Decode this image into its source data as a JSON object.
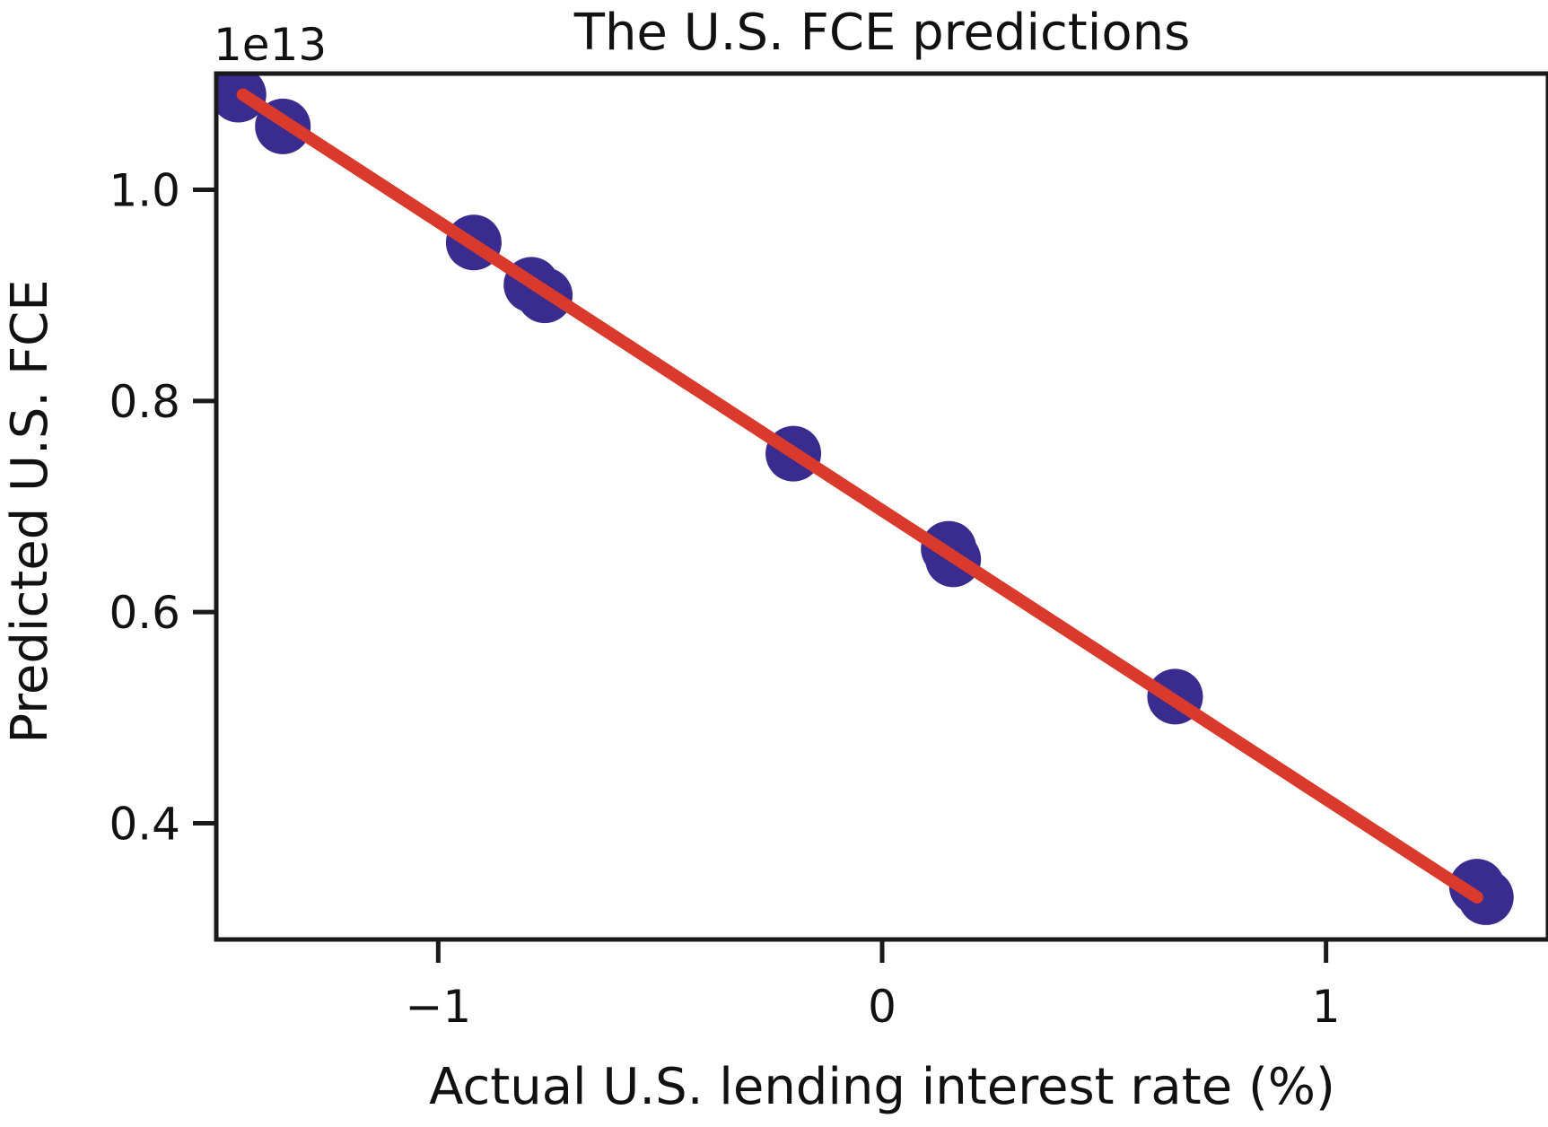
{
  "chart_data": {
    "type": "scatter",
    "title": "The U.S. FCE predictions",
    "xlabel": "Actual U.S. lending interest rate (%)",
    "ylabel": "Predicted U.S. FCE",
    "y_offset_label": "1e13",
    "xlim": [
      -1.5,
      1.5
    ],
    "ylim": [
      0.29,
      1.11
    ],
    "x_ticks": [
      -1,
      0,
      1
    ],
    "x_tick_labels": [
      "−1",
      "0",
      "1"
    ],
    "y_ticks": [
      0.4,
      0.6,
      0.8,
      1.0
    ],
    "y_tick_labels": [
      "0.4",
      "0.6",
      "0.8",
      "1.0"
    ],
    "grid": false,
    "series": [
      {
        "kind": "points",
        "color": "#3a2c8e",
        "points": [
          {
            "x": -1.45,
            "y": 1.09
          },
          {
            "x": -1.35,
            "y": 1.06
          },
          {
            "x": -0.92,
            "y": 0.95
          },
          {
            "x": -0.79,
            "y": 0.91
          },
          {
            "x": -0.76,
            "y": 0.9
          },
          {
            "x": -0.2,
            "y": 0.75
          },
          {
            "x": 0.15,
            "y": 0.66
          },
          {
            "x": 0.16,
            "y": 0.65
          },
          {
            "x": 0.66,
            "y": 0.52
          },
          {
            "x": 1.34,
            "y": 0.34
          },
          {
            "x": 1.36,
            "y": 0.33
          }
        ]
      },
      {
        "kind": "line",
        "color": "#d93a2b",
        "points": [
          {
            "x": -1.44,
            "y": 1.09
          },
          {
            "x": 1.34,
            "y": 0.33
          }
        ]
      }
    ]
  }
}
